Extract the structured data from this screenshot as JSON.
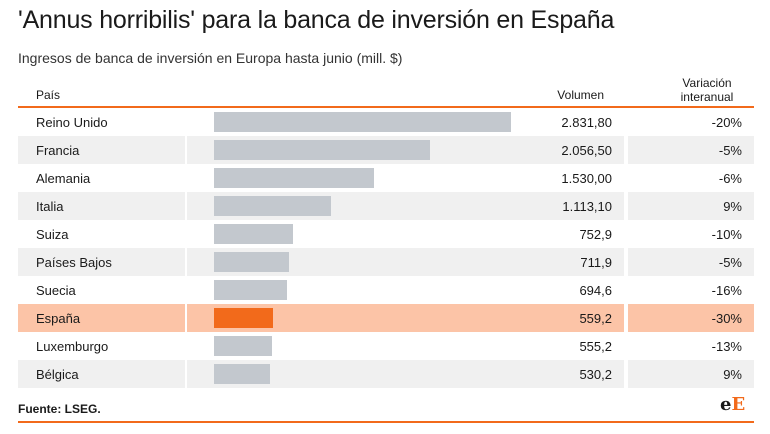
{
  "title": "'Annus horribilis' para la banca de inversión en España",
  "subtitle": "Ingresos de banca de inversión en Europa hasta junio (mill. $)",
  "source": "Fuente: LSEG.",
  "logo": {
    "left": "e",
    "right": "E"
  },
  "colors": {
    "accent": "#f26a1b",
    "bar": "#c3c8ce",
    "highlight_row": "#fcc4a7",
    "alt_row": "#f0f0f0"
  },
  "chart_data": {
    "type": "bar",
    "orientation": "horizontal",
    "columns": [
      "País",
      "Volumen",
      "Variación interanual"
    ],
    "highlight": "España",
    "xlim": [
      0,
      2831.8
    ],
    "rows": [
      {
        "country": "Reino Unido",
        "value": 2831.8,
        "value_label": "2.831,80",
        "change": "-20%"
      },
      {
        "country": "Francia",
        "value": 2056.5,
        "value_label": "2.056,50",
        "change": "-5%"
      },
      {
        "country": "Alemania",
        "value": 1530.0,
        "value_label": "1.530,00",
        "change": "-6%"
      },
      {
        "country": "Italia",
        "value": 1113.1,
        "value_label": "1.113,10",
        "change": "9%"
      },
      {
        "country": "Suiza",
        "value": 752.9,
        "value_label": "752,9",
        "change": "-10%"
      },
      {
        "country": "Países Bajos",
        "value": 711.9,
        "value_label": "711,9",
        "change": "-5%"
      },
      {
        "country": "Suecia",
        "value": 694.6,
        "value_label": "694,6",
        "change": "-16%"
      },
      {
        "country": "España",
        "value": 559.2,
        "value_label": "559,2",
        "change": "-30%"
      },
      {
        "country": "Luxemburgo",
        "value": 555.2,
        "value_label": "555,2",
        "change": "-13%"
      },
      {
        "country": "Bélgica",
        "value": 530.2,
        "value_label": "530,2",
        "change": "9%"
      }
    ]
  }
}
